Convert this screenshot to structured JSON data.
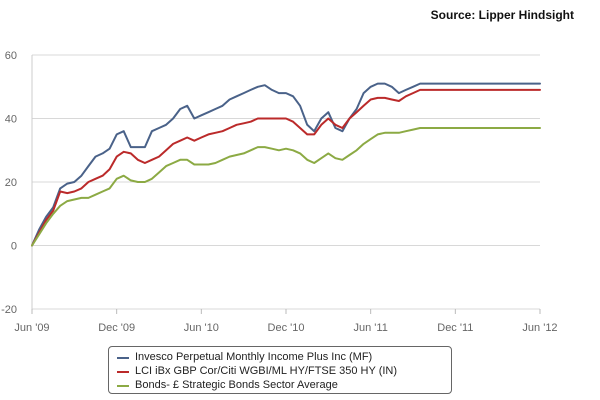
{
  "source": "Source: Lipper Hindsight",
  "chart_data": {
    "type": "line",
    "x_tick_labels": [
      "Jun '09",
      "Dec '09",
      "Jun '10",
      "Dec '10",
      "Jun '11",
      "Dec '11",
      "Jun '12"
    ],
    "ylim": [
      -20,
      60
    ],
    "y_ticks": [
      -20,
      0,
      20,
      40,
      60
    ],
    "y_tick_labels": [
      "-20",
      "0",
      "20",
      "40",
      "60"
    ],
    "grid": "horizontal",
    "legend_position": "bottom",
    "x": [
      0,
      0.5,
      1,
      1.5,
      2,
      2.5,
      3,
      3.5,
      4,
      4.5,
      5,
      5.5,
      6,
      6.5,
      7,
      7.5,
      8,
      8.5,
      9,
      9.5,
      10,
      10.5,
      11,
      11.5,
      12,
      12.5,
      13,
      13.5,
      14,
      14.5,
      15,
      15.5,
      16,
      16.5,
      17,
      17.5,
      18,
      18.5,
      19,
      19.5,
      20,
      20.5,
      21,
      21.5,
      22,
      22.5,
      23,
      23.5,
      24,
      24.5,
      25,
      25.5,
      26,
      26.5,
      27,
      27.5,
      28,
      28.5,
      29,
      29.5,
      30,
      30.5,
      31,
      31.5,
      32,
      32.5,
      33,
      33.5,
      34,
      34.5,
      35,
      35.5,
      36
    ],
    "series": [
      {
        "name": "Invesco Perpetual Monthly Income Plus Inc (MF)",
        "color": "#4a6289",
        "values": [
          0,
          5,
          9,
          12,
          18,
          19.5,
          20,
          22,
          25,
          28,
          29,
          30.5,
          35,
          36,
          31,
          31,
          31,
          36,
          37,
          38,
          40,
          43,
          44,
          40,
          41,
          42,
          43,
          44,
          46,
          47,
          48,
          49,
          50,
          50.5,
          49,
          48,
          48,
          47,
          44,
          38,
          36,
          40,
          42,
          37,
          36,
          40,
          43,
          48,
          50,
          51,
          51,
          50,
          48,
          49,
          50,
          51,
          51,
          51,
          51,
          51,
          51,
          51,
          51,
          51,
          51,
          51,
          51,
          51,
          51,
          51,
          51,
          51,
          51
        ]
      },
      {
        "name": "LCI iBx GBP Cor/Citi WGBI/ML HY/FTSE 350 HY (IN)",
        "color": "#bb2a2a",
        "values": [
          0,
          4,
          8,
          11,
          17,
          16.5,
          17,
          18,
          20,
          21,
          22,
          24,
          28,
          29.5,
          29,
          27,
          26,
          27,
          28,
          30,
          32,
          33,
          34,
          33,
          34,
          35,
          35.5,
          36,
          37,
          38,
          38.5,
          39,
          40,
          40,
          40,
          40,
          40,
          39,
          37,
          35,
          35,
          38,
          40,
          38,
          37,
          40,
          42,
          44,
          46,
          46.5,
          46.5,
          46,
          45.5,
          47,
          48,
          49,
          49,
          49,
          49,
          49,
          49,
          49,
          49,
          49,
          49,
          49,
          49,
          49,
          49,
          49,
          49,
          49,
          49
        ]
      },
      {
        "name": "Bonds- £ Strategic Bonds Sector Average",
        "color": "#8caa44",
        "values": [
          0,
          3.5,
          7,
          10,
          12.5,
          14,
          14.5,
          15,
          15,
          16,
          17,
          18,
          21,
          22,
          20.5,
          20,
          20,
          21,
          23,
          25,
          26,
          27,
          27,
          25.5,
          25.5,
          25.5,
          26,
          27,
          28,
          28.5,
          29,
          30,
          31,
          31,
          30.5,
          30,
          30.5,
          30,
          29,
          27,
          26,
          27.5,
          29,
          27.5,
          27,
          28.5,
          30,
          32,
          33.5,
          35,
          35.5,
          35.5,
          35.5,
          36,
          36.5,
          37,
          37,
          37,
          37,
          37,
          37,
          37,
          37,
          37,
          37,
          37,
          37,
          37,
          37,
          37,
          37,
          37,
          37
        ]
      }
    ]
  }
}
